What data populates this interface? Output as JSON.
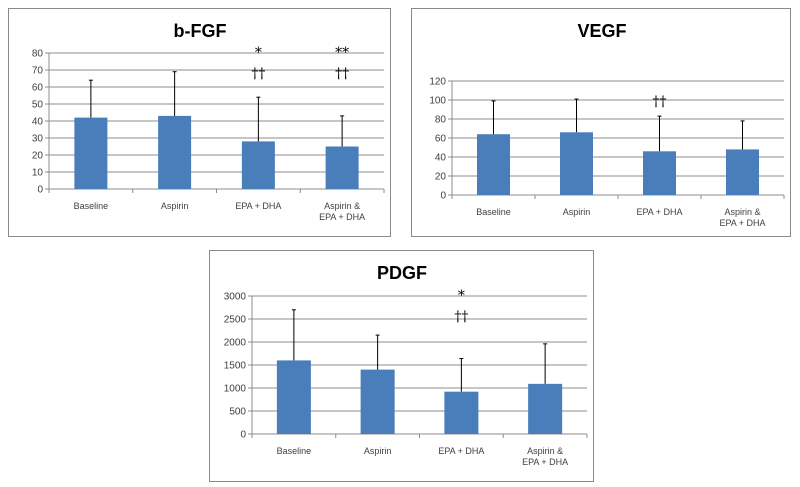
{
  "chart_data": [
    {
      "type": "bar",
      "title": "b-FGF",
      "categories": [
        "Baseline",
        "Aspirin",
        "EPA + DHA",
        "Aspirin &\nEPA + DHA"
      ],
      "values": [
        42,
        43,
        28,
        25
      ],
      "error_upper": [
        64,
        69,
        54,
        43
      ],
      "annotations": [
        [
          "",
          ""
        ],
        [
          "",
          ""
        ],
        [
          "*",
          "††"
        ],
        [
          "**",
          "††"
        ]
      ],
      "ylim": [
        0,
        80
      ],
      "yticks": [
        0,
        10,
        20,
        30,
        40,
        50,
        60,
        70,
        80
      ],
      "grid": true,
      "bar_color": "#4a7ebb"
    },
    {
      "type": "bar",
      "title": "VEGF",
      "categories": [
        "Baseline",
        "Aspirin",
        "EPA + DHA",
        "Aspirin &\nEPA + DHA"
      ],
      "values": [
        64,
        66,
        46,
        48
      ],
      "error_upper": [
        99,
        101,
        83,
        78
      ],
      "annotations": [
        [
          "",
          ""
        ],
        [
          "",
          ""
        ],
        [
          "",
          "††"
        ],
        [
          "",
          ""
        ]
      ],
      "ylim": [
        0,
        120
      ],
      "yticks": [
        0,
        20,
        40,
        60,
        80,
        100,
        120
      ],
      "grid": true,
      "bar_color": "#4a7ebb"
    },
    {
      "type": "bar",
      "title": "PDGF",
      "categories": [
        "Baseline",
        "Aspirin",
        "EPA + DHA",
        "Aspirin &\nEPA + DHA"
      ],
      "values": [
        1600,
        1400,
        920,
        1090
      ],
      "error_upper": [
        2700,
        2150,
        1640,
        1960
      ],
      "annotations": [
        [
          "",
          ""
        ],
        [
          "",
          ""
        ],
        [
          "*",
          "††"
        ],
        [
          "",
          ""
        ]
      ],
      "ylim": [
        0,
        3000
      ],
      "yticks": [
        0,
        500,
        1000,
        1500,
        2000,
        2500,
        3000
      ],
      "grid": true,
      "bar_color": "#4a7ebb"
    }
  ]
}
